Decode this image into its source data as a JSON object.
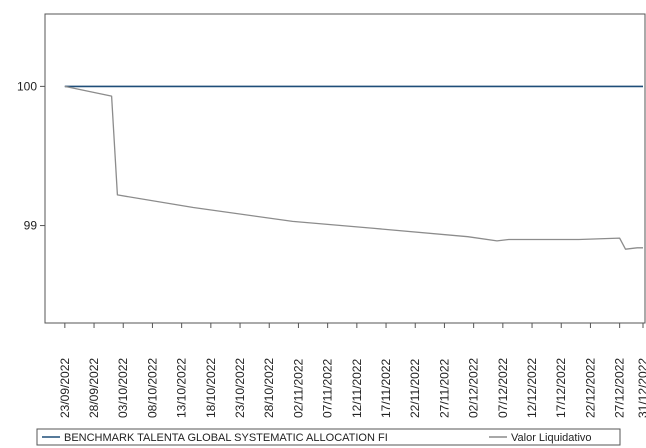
{
  "chart_data": {
    "type": "line",
    "title": "",
    "xlabel": "",
    "ylabel": "",
    "grid": false,
    "legend_placement": "bottom",
    "x_tick_labels": [
      "23/09/2022",
      "28/09/2022",
      "03/10/2022",
      "08/10/2022",
      "13/10/2022",
      "18/10/2022",
      "23/10/2022",
      "28/10/2022",
      "02/11/2022",
      "07/11/2022",
      "12/11/2022",
      "17/11/2022",
      "22/11/2022",
      "27/11/2022",
      "02/12/2022",
      "07/12/2022",
      "12/12/2022",
      "17/12/2022",
      "22/12/2022",
      "27/12/2022",
      "31/12/2022"
    ],
    "y_tick_labels": [
      "99",
      "100"
    ],
    "ylim": [
      98.3,
      100.52
    ],
    "xlim": [
      "22/09/2022",
      "31/12/2022"
    ],
    "series": [
      {
        "name": "BENCHMARK TALENTA GLOBAL SYSTEMATIC ALLOCATION FI",
        "color": "#1f4e79",
        "x": [
          "23/09/2022",
          "31/12/2022"
        ],
        "y": [
          100.0,
          100.0
        ]
      },
      {
        "name": "Valor Liquidativo",
        "color": "#8c8c8c",
        "x": [
          "23/09/2022",
          "01/10/2022",
          "02/10/2022",
          "15/10/2022",
          "01/11/2022",
          "15/11/2022",
          "01/12/2022",
          "06/12/2022",
          "08/12/2022",
          "20/12/2022",
          "27/12/2022",
          "28/12/2022",
          "30/12/2022",
          "31/12/2022"
        ],
        "y": [
          100.0,
          99.93,
          99.22,
          99.13,
          99.03,
          98.98,
          98.92,
          98.89,
          98.9,
          98.9,
          98.91,
          98.83,
          98.84,
          98.84
        ]
      }
    ]
  }
}
